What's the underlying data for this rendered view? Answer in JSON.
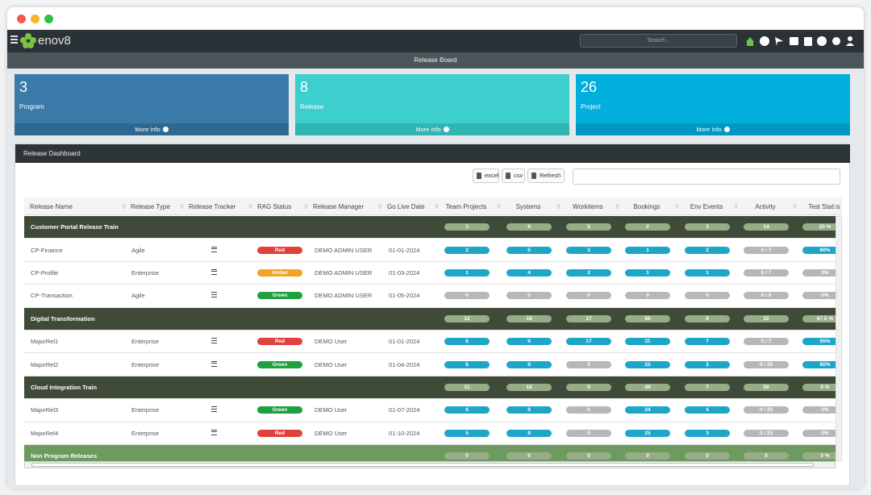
{
  "app": {
    "logo": "enov8",
    "search_placeholder": "Search...",
    "page_title": "Release Board"
  },
  "cards": [
    {
      "value": "3",
      "label": "Program",
      "link": "More info",
      "color": "#3b79a9",
      "footer_color": "#2f6791"
    },
    {
      "value": "8",
      "label": "Release",
      "link": "More info",
      "color": "#3ccfcd",
      "footer_color": "#30b5b3"
    },
    {
      "value": "26",
      "label": "Project",
      "link": "More info",
      "color": "#00afdc",
      "footer_color": "#0098c3"
    }
  ],
  "panel": {
    "title": "Release Dashboard",
    "buttons": [
      "excel",
      "csv",
      "Refresh"
    ]
  },
  "table": {
    "columns": [
      "Release Name",
      "Release Type",
      "Release Tracker",
      "RAG Status",
      "Release Manager",
      "Go Live Date",
      "Team Projects",
      "Systems",
      "Workitems",
      "Bookings",
      "Env Events",
      "Activity",
      "Test Status"
    ],
    "rows": [
      {
        "group": "Customer Portal Release Train",
        "metrics": [
          "3",
          "9",
          "5",
          "2",
          "3",
          "14",
          "20 %"
        ],
        "color": "#3f4b38"
      },
      {
        "name": "CP-Finance",
        "type": "Agile",
        "rag": {
          "label": "Red",
          "color": "#e2403a"
        },
        "manager": "DEMO ADMIN USER",
        "date": "01-01-2024",
        "metrics": [
          "2",
          "5",
          "3",
          "1",
          "2",
          "0 / 7",
          "60%"
        ]
      },
      {
        "name": "CP-Profile",
        "type": "Enterprise",
        "rag": {
          "label": "Amber",
          "color": "#f4a224"
        },
        "manager": "DEMO ADMIN USER",
        "date": "01-03-2024",
        "metrics": [
          "1",
          "4",
          "2",
          "1",
          "1",
          "0 / 7",
          "0%"
        ]
      },
      {
        "name": "CP-Transaction",
        "type": "Agile",
        "rag": {
          "label": "Green",
          "color": "#1f9f3f"
        },
        "manager": "DEMO ADMIN USER",
        "date": "01-05-2024",
        "metrics": [
          "0",
          "0",
          "0",
          "0",
          "0",
          "0 / 0",
          "0%"
        ]
      },
      {
        "group": "Digital Transformation",
        "metrics": [
          "12",
          "18",
          "17",
          "56",
          "9",
          "32",
          "67.5 %"
        ],
        "color": "#3f4b38"
      },
      {
        "name": "MajorRel1",
        "type": "Enterprise",
        "rag": {
          "label": "Red",
          "color": "#e2403a"
        },
        "manager": "DEMO User",
        "date": "01-01-2024",
        "metrics": [
          "6",
          "9",
          "17",
          "31",
          "7",
          "0 / 7",
          "55%"
        ]
      },
      {
        "name": "MajorRel2",
        "type": "Enterprise",
        "rag": {
          "label": "Green",
          "color": "#1f9f3f"
        },
        "manager": "DEMO User",
        "date": "01-04-2024",
        "metrics": [
          "6",
          "9",
          "0",
          "25",
          "2",
          "0 / 25",
          "80%"
        ]
      },
      {
        "group": "Cloud Integration Train",
        "metrics": [
          "11",
          "18",
          "0",
          "49",
          "7",
          "50",
          "0 %"
        ],
        "color": "#3f4b38"
      },
      {
        "name": "MajorRel3",
        "type": "Enterprise",
        "rag": {
          "label": "Green",
          "color": "#1f9f3f"
        },
        "manager": "DEMO User",
        "date": "01-07-2024",
        "metrics": [
          "6",
          "9",
          "0",
          "24",
          "4",
          "0 / 25",
          "0%"
        ]
      },
      {
        "name": "MajorRel4",
        "type": "Enterprise",
        "rag": {
          "label": "Red",
          "color": "#e2403a"
        },
        "manager": "DEMO User",
        "date": "01-10-2024",
        "metrics": [
          "5",
          "9",
          "0",
          "25",
          "3",
          "0 / 25",
          "0%"
        ]
      },
      {
        "group": "Non Program Releases",
        "metrics": [
          "0",
          "0",
          "0",
          "0",
          "0",
          "0",
          "0 %"
        ],
        "color": "#6c9a5f"
      }
    ]
  }
}
